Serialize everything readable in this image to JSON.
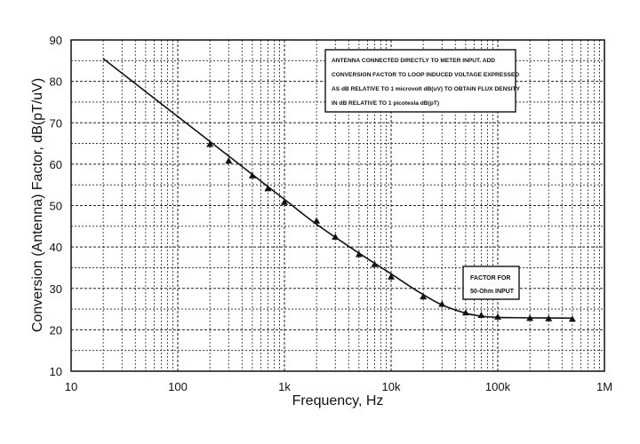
{
  "chart_data": {
    "type": "line",
    "xlabel": "Frequency, Hz",
    "ylabel": "Conversion (Antenna) Factor, dB(pT/uV)",
    "x_scale": "log",
    "xlim": [
      10,
      1000000
    ],
    "ylim": [
      10,
      90
    ],
    "grid": true,
    "x_ticks": [
      {
        "value": 10,
        "label": "10"
      },
      {
        "value": 100,
        "label": "100"
      },
      {
        "value": 1000,
        "label": "1k"
      },
      {
        "value": 10000,
        "label": "10k"
      },
      {
        "value": 100000,
        "label": "100k"
      },
      {
        "value": 1000000,
        "label": "1M"
      }
    ],
    "y_ticks": [
      {
        "value": 10,
        "label": "10"
      },
      {
        "value": 20,
        "label": "20"
      },
      {
        "value": 30,
        "label": "30"
      },
      {
        "value": 40,
        "label": "40"
      },
      {
        "value": 50,
        "label": "50"
      },
      {
        "value": 60,
        "label": "60"
      },
      {
        "value": 70,
        "label": "70"
      },
      {
        "value": 80,
        "label": "80"
      },
      {
        "value": 90,
        "label": "90"
      }
    ],
    "series": [
      {
        "kind": "curve",
        "x": [
          20,
          50,
          100,
          200,
          500,
          1000,
          2000,
          5000,
          10000,
          15000,
          20000,
          30000,
          50000,
          70000,
          100000,
          200000,
          500000
        ],
        "y": [
          85.5,
          77.5,
          71.5,
          65.5,
          57.5,
          51.5,
          45.5,
          38.5,
          33.5,
          30.5,
          28.5,
          26,
          24,
          23.3,
          23,
          22.9,
          22.8
        ]
      },
      {
        "kind": "points",
        "marker": "triangle",
        "x": [
          200,
          300,
          500,
          700,
          1000,
          2000,
          3000,
          5000,
          7000,
          10000,
          20000,
          30000,
          50000,
          70000,
          100000,
          200000,
          300000,
          500000
        ],
        "y": [
          64.8,
          60.8,
          57.2,
          54.1,
          50.8,
          46.3,
          42.4,
          38.2,
          35.8,
          32.8,
          28,
          26.2,
          24.1,
          23.5,
          23.1,
          22.8,
          22.7,
          22.6
        ]
      }
    ],
    "annotations": [
      {
        "id": "note",
        "lines": [
          "ANTENNA CONNECTED DIRECTLY TO METER INPUT.  ADD",
          "CONVERSION FACTOR TO LOOP INDUCED VOLTAGE EXPRESSED",
          "AS dB RELATIVE TO 1 microvolt dB(uV) TO OBTAIN FLUX DENSITY",
          "IN dB RELATIVE TO 1 picotesla dB(pT)"
        ]
      },
      {
        "id": "factor",
        "lines": [
          "FACTOR FOR",
          "50-Ohm INPUT"
        ]
      }
    ]
  }
}
